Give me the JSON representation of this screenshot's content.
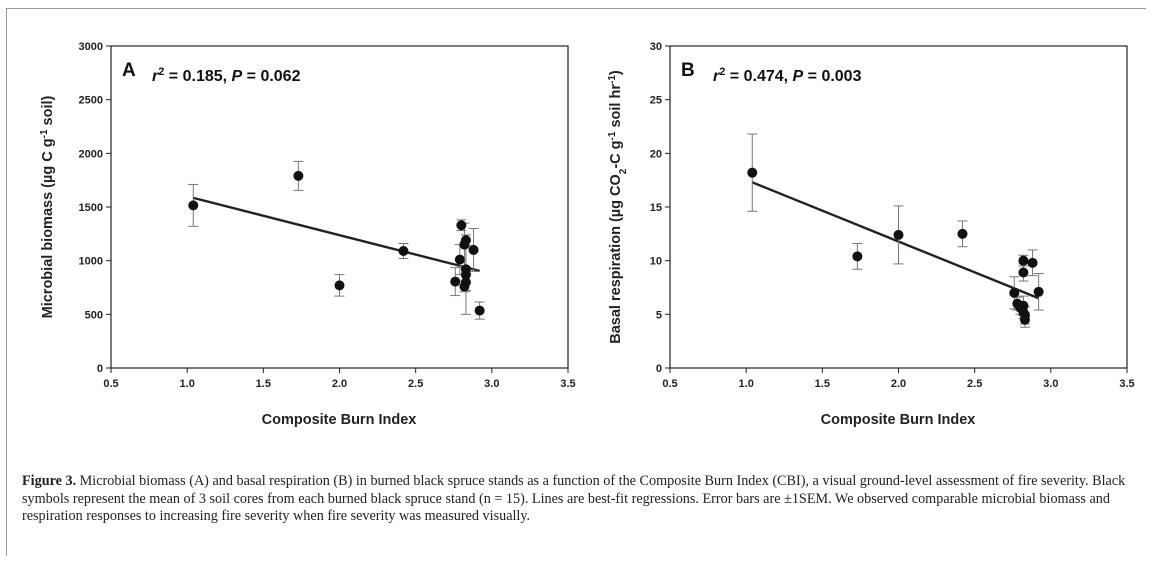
{
  "caption": {
    "label": "Figure 3.",
    "text": "Microbial biomass (A) and basal respiration (B) in burned black spruce stands as a function of the Composite Burn Index (CBI), a visual ground-level assessment of fire severity. Black symbols represent the mean of 3 soil cores from each burned black spruce stand (n = 15). Lines are best-fit regressions. Error bars are ±1SEM. We observed comparable microbial biomass and respiration responses to increasing fire severity when fire severity was measured visually."
  },
  "chart_data": [
    {
      "type": "scatter",
      "panel_label": "A",
      "stat_r2": "0.185",
      "stat_p": "0.062",
      "xlabel": "Composite Burn Index",
      "ylabel_main": "Microbial biomass (µg C g",
      "ylabel_sup": "-1",
      "ylabel_end": " soil)",
      "xlim": [
        0.5,
        3.5
      ],
      "ylim": [
        0,
        3000
      ],
      "xticks": [
        "0.5",
        "1.0",
        "1.5",
        "2.0",
        "2.5",
        "3.0",
        "3.5"
      ],
      "yticks": [
        "0",
        "500",
        "1000",
        "1500",
        "2000",
        "2500",
        "3000"
      ],
      "points": [
        {
          "x": 1.04,
          "y": 1515,
          "err": 195
        },
        {
          "x": 1.73,
          "y": 1790,
          "err": 135
        },
        {
          "x": 2.0,
          "y": 770,
          "err": 100
        },
        {
          "x": 2.42,
          "y": 1090,
          "err": 70
        },
        {
          "x": 2.76,
          "y": 805,
          "err": 130
        },
        {
          "x": 2.79,
          "y": 1010,
          "err": 140
        },
        {
          "x": 2.8,
          "y": 1330,
          "err": 50
        },
        {
          "x": 2.82,
          "y": 1150,
          "err": 200
        },
        {
          "x": 2.83,
          "y": 1190,
          "err": 50
        },
        {
          "x": 2.83,
          "y": 920,
          "err": 200
        },
        {
          "x": 2.83,
          "y": 870,
          "err": 370
        },
        {
          "x": 2.82,
          "y": 760,
          "err": 50
        },
        {
          "x": 2.83,
          "y": 800,
          "err": 80
        },
        {
          "x": 2.88,
          "y": 1100,
          "err": 200
        },
        {
          "x": 2.92,
          "y": 535,
          "err": 80
        }
      ],
      "fit": {
        "x": [
          1.04,
          2.92
        ],
        "y": [
          1585,
          905
        ]
      }
    },
    {
      "type": "scatter",
      "panel_label": "B",
      "stat_r2": "0.474",
      "stat_p": "0.003",
      "xlabel": "Composite Burn Index",
      "ylabel_main": "Basal respiration (µg CO",
      "ylabel_sub": "2",
      "ylabel_mid": "-C g",
      "ylabel_sup": "-1",
      "ylabel_mid2": " soil hr",
      "ylabel_sup2": "-1",
      "ylabel_end": ")",
      "xlim": [
        0.5,
        3.5
      ],
      "ylim": [
        0,
        30
      ],
      "xticks": [
        "0.5",
        "1.0",
        "1.5",
        "2.0",
        "2.5",
        "3.0",
        "3.5"
      ],
      "yticks": [
        "0",
        "5",
        "10",
        "15",
        "20",
        "25",
        "30"
      ],
      "points": [
        {
          "x": 1.04,
          "y": 18.2,
          "err": 3.6
        },
        {
          "x": 1.73,
          "y": 10.4,
          "err": 1.2
        },
        {
          "x": 2.0,
          "y": 12.4,
          "err": 2.7
        },
        {
          "x": 2.42,
          "y": 12.5,
          "err": 1.2
        },
        {
          "x": 2.76,
          "y": 7.0,
          "err": 1.5
        },
        {
          "x": 2.78,
          "y": 6.0,
          "err": 0.6
        },
        {
          "x": 2.8,
          "y": 5.6,
          "err": 0.6
        },
        {
          "x": 2.82,
          "y": 10.0,
          "err": 0.5
        },
        {
          "x": 2.82,
          "y": 8.9,
          "err": 0.8
        },
        {
          "x": 2.82,
          "y": 5.8,
          "err": 0.9
        },
        {
          "x": 2.83,
          "y": 4.9,
          "err": 0.8
        },
        {
          "x": 2.83,
          "y": 4.5,
          "err": 0.7
        },
        {
          "x": 2.82,
          "y": 5.2,
          "err": 0.6
        },
        {
          "x": 2.88,
          "y": 9.8,
          "err": 1.2
        },
        {
          "x": 2.92,
          "y": 7.1,
          "err": 1.7
        }
      ],
      "fit": {
        "x": [
          1.04,
          2.92
        ],
        "y": [
          17.3,
          6.5
        ]
      }
    }
  ]
}
